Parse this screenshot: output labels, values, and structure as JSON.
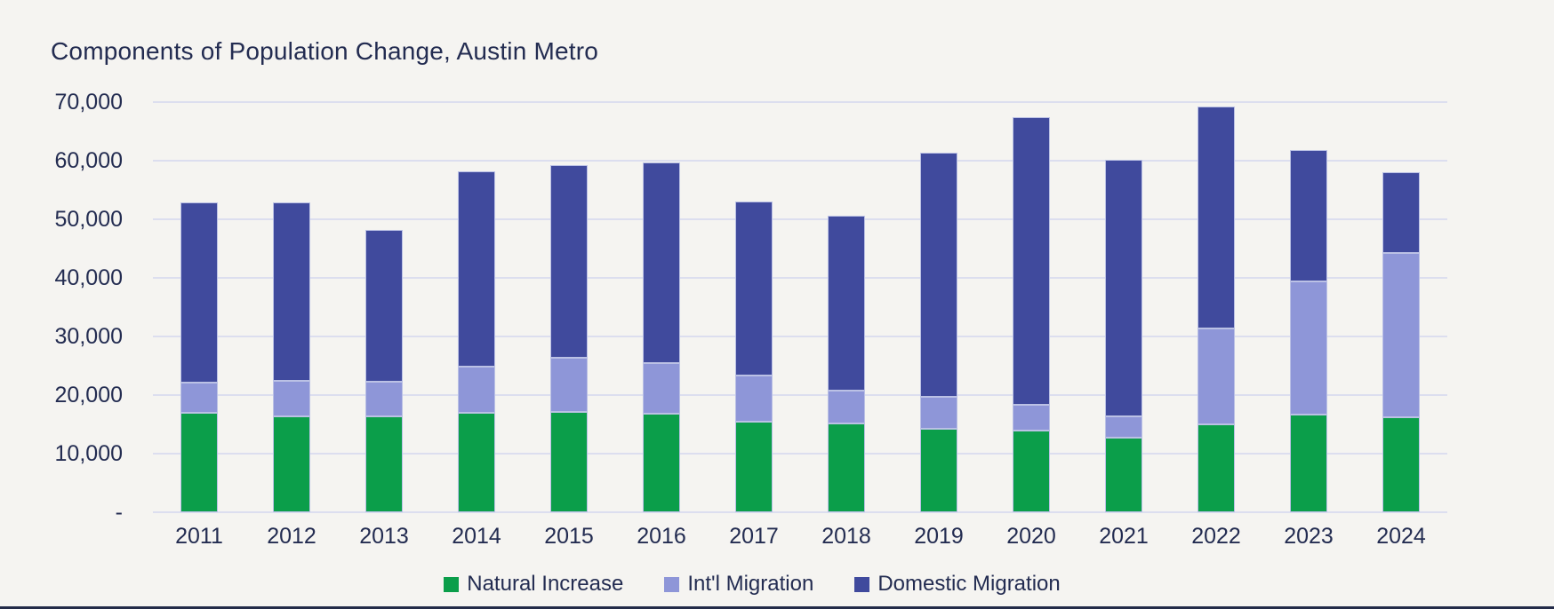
{
  "title": "Components of Population Change, Austin Metro",
  "colors": {
    "background": "#f5f4f1",
    "text": "#232c51",
    "gridline": "#dcdeef",
    "bar_outline": "#bbc1e5",
    "natural_increase": "#0b9e4a",
    "intl_migration": "#8e96d8",
    "domestic_migration": "#404a9d",
    "footer_bar": "#232b49"
  },
  "y_axis": {
    "min": 0,
    "max": 70000,
    "step": 10000,
    "ticks": [
      {
        "label": "70,000",
        "value": 70000
      },
      {
        "label": "60,000",
        "value": 60000
      },
      {
        "label": "50,000",
        "value": 50000
      },
      {
        "label": "40,000",
        "value": 40000
      },
      {
        "label": "30,000",
        "value": 30000
      },
      {
        "label": "20,000",
        "value": 20000
      },
      {
        "label": "10,000",
        "value": 10000
      },
      {
        "label": "-",
        "value": 0
      }
    ]
  },
  "legend": [
    {
      "label": "Natural Increase",
      "color_key": "natural_increase"
    },
    {
      "label": "Int'l Migration",
      "color_key": "intl_migration"
    },
    {
      "label": "Domestic Migration",
      "color_key": "domestic_migration"
    }
  ],
  "chart_data": {
    "type": "bar",
    "stacked": true,
    "title": "Components of Population Change, Austin Metro",
    "xlabel": "",
    "ylabel": "",
    "ylim": [
      0,
      70000
    ],
    "grid": "horizontal",
    "legend_position": "bottom",
    "categories": [
      "2011",
      "2012",
      "2013",
      "2014",
      "2015",
      "2016",
      "2017",
      "2018",
      "2019",
      "2020",
      "2021",
      "2022",
      "2023",
      "2024"
    ],
    "series": [
      {
        "name": "Natural Increase",
        "color_key": "natural_increase",
        "values": [
          16900,
          16300,
          16300,
          16900,
          17100,
          16800,
          15500,
          15200,
          14200,
          14000,
          12700,
          15000,
          16600,
          16200
        ]
      },
      {
        "name": "Int'l Migration",
        "color_key": "intl_migration",
        "values": [
          5300,
          6100,
          6000,
          8000,
          9300,
          8700,
          7900,
          5600,
          5500,
          4400,
          3600,
          16400,
          22800,
          28000
        ]
      },
      {
        "name": "Domestic Migration",
        "color_key": "domestic_migration",
        "values": [
          30700,
          30500,
          25900,
          33300,
          32900,
          34200,
          29600,
          29800,
          41600,
          49100,
          43900,
          37900,
          22400,
          13900
        ]
      }
    ],
    "totals": [
      52900,
      52900,
      48200,
      58200,
      59300,
      59700,
      53000,
      50600,
      61300,
      67500,
      60200,
      69300,
      61800,
      58100
    ]
  }
}
